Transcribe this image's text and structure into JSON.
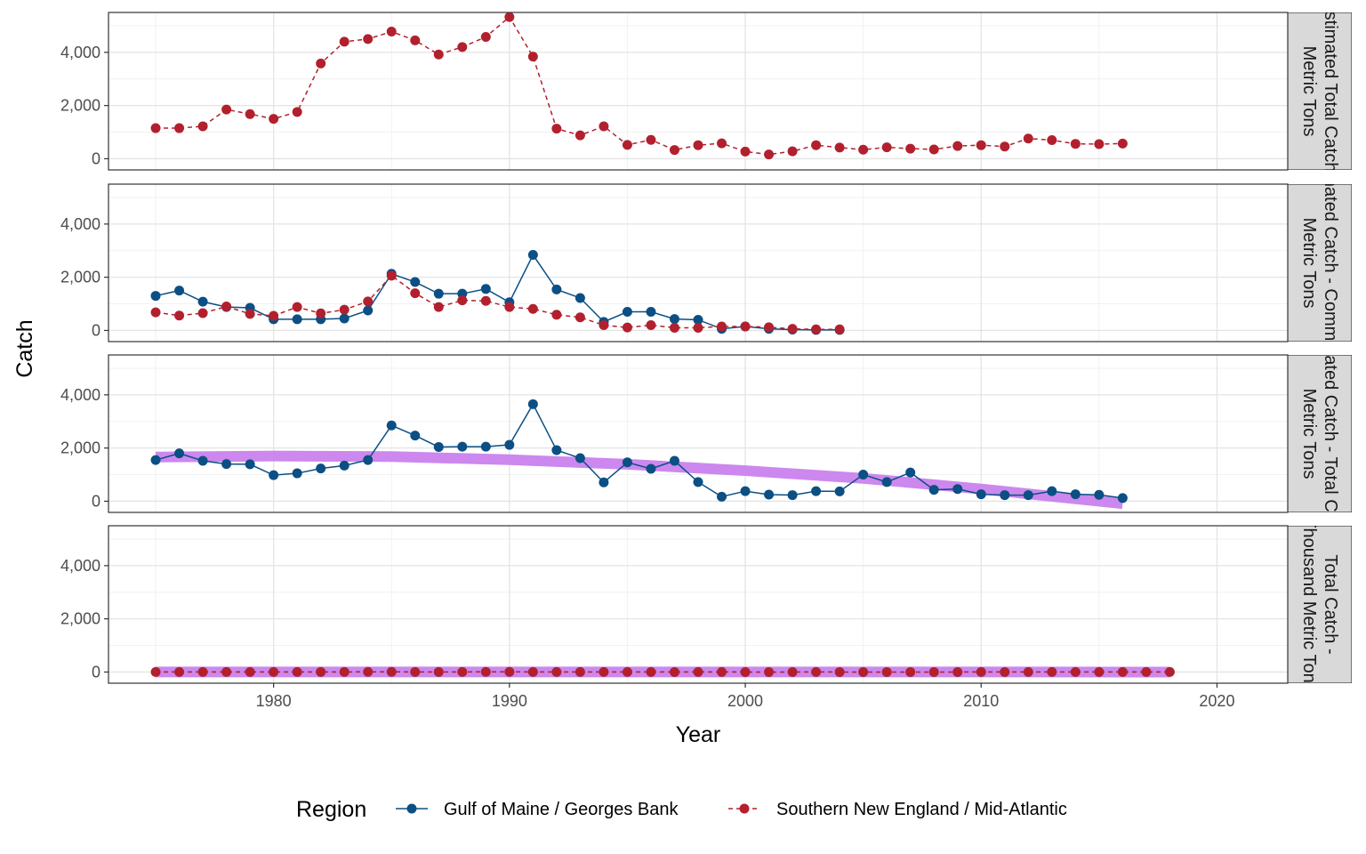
{
  "chart_data": {
    "type": "line",
    "xlabel": "Year",
    "ylabel": "Catch",
    "xlim": [
      1973,
      2023
    ],
    "ylim": [
      -420,
      5500
    ],
    "x_ticks": [
      1980,
      1990,
      2000,
      2010,
      2020
    ],
    "x_tick_labels": [
      "1980",
      "1990",
      "2000",
      "2010",
      "2020"
    ],
    "y_ticks": [
      0,
      2000,
      4000
    ],
    "y_tick_labels": [
      "0",
      "2,000",
      "4,000"
    ],
    "grid": true,
    "legend": {
      "title": "Region",
      "position": "bottom",
      "entries": [
        {
          "label": "Gulf of Maine / Georges Bank",
          "color": "#0b4f84",
          "linetype": "solid"
        },
        {
          "label": "Southern New England / Mid-Atlantic",
          "color": "#b2202e",
          "linetype": "dashed"
        }
      ]
    },
    "trend_color": "#cc88ee",
    "facets": [
      {
        "strip": [
          "Estimated Total Catch -",
          "Metric Tons"
        ],
        "series": [
          {
            "name": "Southern New England / Mid-Atlantic",
            "x": [
              1975,
              1976,
              1977,
              1978,
              1979,
              1980,
              1981,
              1982,
              1983,
              1984,
              1985,
              1986,
              1987,
              1988,
              1989,
              1990,
              1991,
              1992,
              1993,
              1994,
              1995,
              1996,
              1997,
              1998,
              1999,
              2000,
              2001,
              2002,
              2003,
              2004,
              2005,
              2006,
              2007,
              2008,
              2009,
              2010,
              2011,
              2012,
              2013,
              2014,
              2015,
              2016
            ],
            "y": [
              1150,
              1150,
              1220,
              1850,
              1680,
              1500,
              1760,
              3580,
              4400,
              4500,
              4780,
              4450,
              3920,
              4200,
              4580,
              5330,
              3840,
              1130,
              880,
              1220,
              520,
              710,
              330,
              510,
              580,
              270,
              160,
              280,
              510,
              420,
              340,
              430,
              380,
              350,
              480,
              510,
              460,
              760,
              700,
              560,
              550,
              570
            ]
          }
        ],
        "trend": null
      },
      {
        "strip": [
          "Estimated Catch - Commercial",
          "Metric Tons"
        ],
        "series": [
          {
            "name": "Gulf of Maine / Georges Bank",
            "x": [
              1975,
              1976,
              1977,
              1978,
              1979,
              1980,
              1981,
              1982,
              1983,
              1984,
              1985,
              1986,
              1987,
              1988,
              1989,
              1990,
              1991,
              1992,
              1993,
              1994,
              1995,
              1996,
              1997,
              1998,
              1999,
              2000,
              2001,
              2002,
              2003,
              2004
            ],
            "y": [
              1300,
              1500,
              1080,
              880,
              850,
              420,
              420,
              420,
              450,
              750,
              2130,
              1820,
              1380,
              1380,
              1560,
              1060,
              2840,
              1540,
              1220,
              320,
              700,
              700,
              430,
              400,
              60,
              150,
              60,
              30,
              20,
              20
            ]
          },
          {
            "name": "Southern New England / Mid-Atlantic",
            "x": [
              1975,
              1976,
              1977,
              1978,
              1979,
              1980,
              1981,
              1982,
              1983,
              1984,
              1985,
              1986,
              1987,
              1988,
              1989,
              1990,
              1991,
              1992,
              1993,
              1994,
              1995,
              1996,
              1997,
              1998,
              1999,
              2000,
              2001,
              2002,
              2003,
              2004
            ],
            "y": [
              680,
              560,
              650,
              900,
              620,
              550,
              880,
              640,
              780,
              1090,
              2060,
              1400,
              880,
              1130,
              1110,
              880,
              810,
              590,
              490,
              200,
              110,
              200,
              100,
              100,
              150,
              150,
              120,
              60,
              40,
              40
            ]
          }
        ],
        "trend": null
      },
      {
        "strip": [
          "Estimated Catch - Total Catch -",
          "Metric Tons"
        ],
        "series": [
          {
            "name": "Gulf of Maine / Georges Bank",
            "x": [
              1975,
              1976,
              1977,
              1978,
              1979,
              1980,
              1981,
              1982,
              1983,
              1984,
              1985,
              1986,
              1987,
              1988,
              1989,
              1990,
              1991,
              1992,
              1993,
              1994,
              1995,
              1996,
              1997,
              1998,
              1999,
              2000,
              2001,
              2002,
              2003,
              2004,
              2005,
              2006,
              2007,
              2008,
              2009,
              2010,
              2011,
              2012,
              2013,
              2014,
              2015,
              2016
            ],
            "y": [
              1550,
              1800,
              1520,
              1400,
              1390,
              980,
              1050,
              1230,
              1340,
              1550,
              2850,
              2470,
              2040,
              2050,
              2050,
              2120,
              3650,
              1920,
              1620,
              710,
              1460,
              1220,
              1520,
              720,
              170,
              380,
              250,
              230,
              380,
              370,
              1000,
              720,
              1080,
              430,
              460,
              260,
              230,
              230,
              380,
              260,
              240,
              120
            ]
          }
        ],
        "trend": {
          "x": [
            1975,
            1980,
            1985,
            1990,
            1995,
            2000,
            2005,
            2010,
            2016
          ],
          "y": [
            1660,
            1700,
            1680,
            1560,
            1390,
            1150,
            860,
            460,
            -90
          ]
        }
      },
      {
        "strip": [
          "Total Catch -",
          "Thousand Metric Tons"
        ],
        "series": [
          {
            "name": "Southern New England / Mid-Atlantic",
            "x": [
              1975,
              1976,
              1977,
              1978,
              1979,
              1980,
              1981,
              1982,
              1983,
              1984,
              1985,
              1986,
              1987,
              1988,
              1989,
              1990,
              1991,
              1992,
              1993,
              1994,
              1995,
              1996,
              1997,
              1998,
              1999,
              2000,
              2001,
              2002,
              2003,
              2004,
              2005,
              2006,
              2007,
              2008,
              2009,
              2010,
              2011,
              2012,
              2013,
              2014,
              2015,
              2016,
              2017,
              2018
            ],
            "y": [
              1,
              1,
              1,
              2,
              2,
              2,
              2,
              4,
              4,
              5,
              5,
              4,
              4,
              4,
              5,
              5,
              4,
              1,
              1,
              1,
              1,
              1,
              0,
              1,
              1,
              0,
              0,
              0,
              1,
              0,
              0,
              0,
              0,
              0,
              0,
              1,
              0,
              1,
              1,
              1,
              1,
              1,
              1,
              1
            ]
          }
        ],
        "trend": {
          "x": [
            1975,
            2018
          ],
          "y": [
            3,
            0
          ]
        }
      }
    ]
  }
}
